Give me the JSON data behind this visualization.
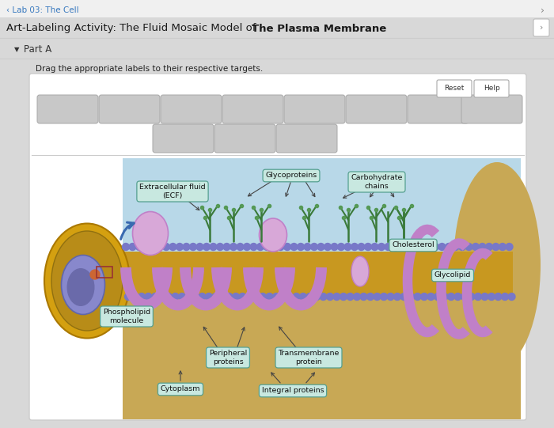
{
  "bg_color": "#d8d8d8",
  "white": "#ffffff",
  "header_text": "‹ Lab 03: The Cell",
  "header_color": "#3a7abf",
  "title_color": "#1a1a1a",
  "subtitle": "Part A",
  "instruction": "Drag the appropriate labels to their respective targets.",
  "annotation_bg": "#c8e8e0",
  "annotation_edge": "#55a090",
  "mem_blue": "#a8cce0",
  "mem_yellow": "#c8a030",
  "mem_head": "#7878c8",
  "protein_color": "#c080c8",
  "cyto_color": "#c8a855",
  "ecf_color": "#b8d8e8",
  "green_chain": "#3a7a3a",
  "cell_outer": "#d4a820",
  "cell_inner": "#b89840",
  "nucleus_color": "#7878b8",
  "arrow_blue": "#3a6ab0",
  "gray_box": "#c8c8c8",
  "gray_box_edge": "#a8a8a8"
}
